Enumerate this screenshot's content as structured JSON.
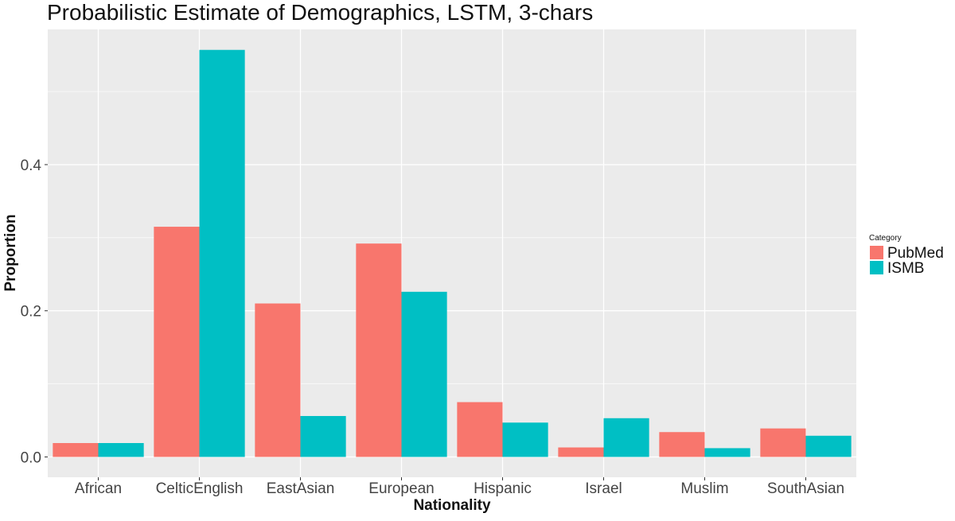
{
  "chart_data": {
    "type": "bar",
    "title": "Probabilistic Estimate of Demographics, LSTM, 3-chars",
    "xlabel": "Nationality",
    "ylabel": "Proportion",
    "categories": [
      "African",
      "CelticEnglish",
      "EastAsian",
      "European",
      "Hispanic",
      "Israel",
      "Muslim",
      "SouthAsian"
    ],
    "series": [
      {
        "name": "PubMed",
        "color": "#F8766D",
        "values": [
          0.019,
          0.315,
          0.21,
          0.292,
          0.075,
          0.013,
          0.034,
          0.039
        ]
      },
      {
        "name": "ISMB",
        "color": "#00BFC4",
        "values": [
          0.019,
          0.557,
          0.056,
          0.226,
          0.047,
          0.053,
          0.012,
          0.029
        ]
      }
    ],
    "ylim": [
      -0.0278,
      0.585
    ],
    "yticks": [
      0.0,
      0.2,
      0.4
    ],
    "ytick_labels": [
      "0.0",
      "0.2",
      "0.4"
    ],
    "legend_title": "Category",
    "legend_position": "right",
    "grid": true,
    "panel_background": "#EBEBEB",
    "grid_color": "#FFFFFF"
  }
}
